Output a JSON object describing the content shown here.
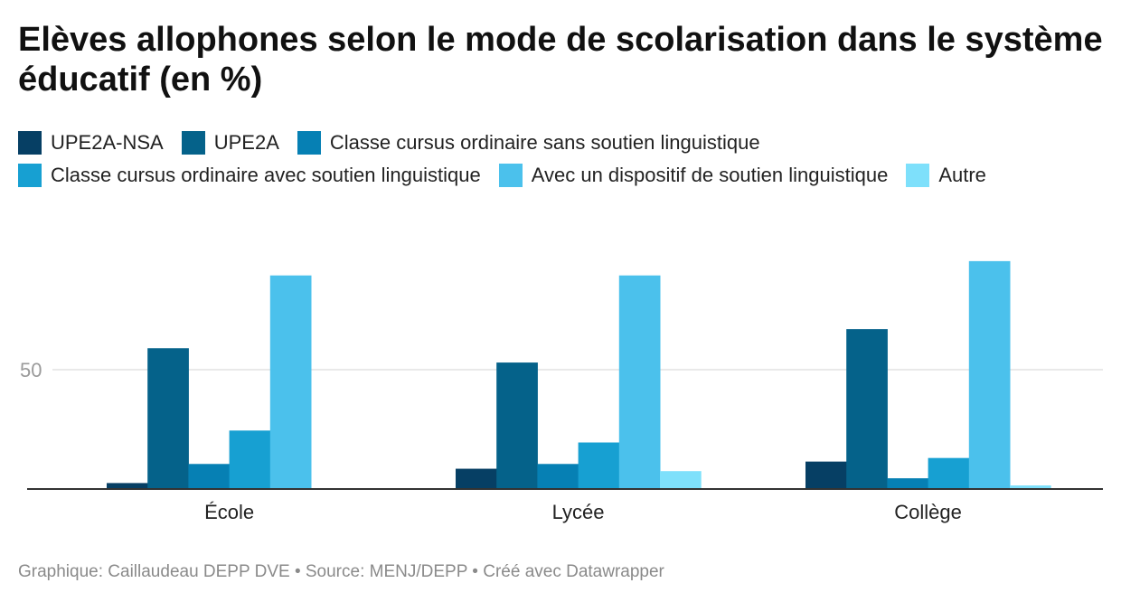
{
  "chart_data": {
    "type": "bar",
    "title": "Elèves allophones selon le mode de scolarisation dans le système éducatif (en %)",
    "categories": [
      "École",
      "Lycée",
      "Collège"
    ],
    "series": [
      {
        "name": "UPE2A-NSA",
        "color": "#063f64",
        "values": [
          2.5,
          8.5,
          11.5
        ]
      },
      {
        "name": "UPE2A",
        "color": "#05628a",
        "values": [
          59,
          53,
          67
        ]
      },
      {
        "name": "Classe cursus ordinaire sans soutien linguistique",
        "color": "#0680b4",
        "values": [
          10.5,
          10.5,
          4.5
        ]
      },
      {
        "name": "Classe cursus ordinaire avec soutien linguistique",
        "color": "#17a0d2",
        "values": [
          24.5,
          19.5,
          13
        ]
      },
      {
        "name": "Avec un dispositif de soutien linguistique",
        "color": "#4bc1ec",
        "values": [
          89.5,
          89.5,
          95.5
        ]
      },
      {
        "name": "Autre",
        "color": "#7ee0fb",
        "values": [
          0,
          7.5,
          1.5
        ]
      }
    ],
    "yticks": [
      50
    ],
    "ylim": [
      0,
      100
    ],
    "grid": true,
    "legend_position": "top-left"
  },
  "footer": "Graphique: Caillaudeau DEPP DVE • Source: MENJ/DEPP • Créé avec Datawrapper"
}
